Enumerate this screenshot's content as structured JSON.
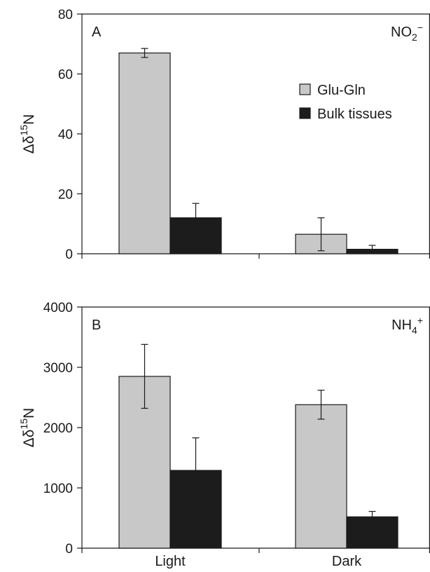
{
  "chart_data": [
    {
      "type": "bar",
      "panel_label": "A",
      "ion_label": "NO2−",
      "ion_base": "NO",
      "ion_sub": "2",
      "ion_sup": "−",
      "ylabel_main": "Δδ",
      "ylabel_sup": "15",
      "ylabel_tail": "N",
      "ylim": [
        0,
        80
      ],
      "yticks": [
        0,
        20,
        40,
        60,
        80
      ],
      "categories": [
        "Light",
        "Dark"
      ],
      "show_category_labels": false,
      "series": [
        {
          "name": "Glu-Gln",
          "color": "#c8c8c8",
          "values": [
            67,
            6.5
          ],
          "errors": [
            1.5,
            5.5
          ]
        },
        {
          "name": "Bulk tissues",
          "color": "#1c1c1c",
          "values": [
            12,
            1.5
          ],
          "errors": [
            4.8,
            1.3
          ]
        }
      ],
      "legend": {
        "placement": "top-right",
        "entries": [
          "Glu-Gln",
          "Bulk tissues"
        ]
      }
    },
    {
      "type": "bar",
      "panel_label": "B",
      "ion_label": "NH4+",
      "ion_base": "NH",
      "ion_sub": "4",
      "ion_sup": "+",
      "ylabel_main": "Δδ",
      "ylabel_sup": "15",
      "ylabel_tail": "N",
      "ylim": [
        0,
        4000
      ],
      "yticks": [
        0,
        1000,
        2000,
        3000,
        4000
      ],
      "categories": [
        "Light",
        "Dark"
      ],
      "show_category_labels": true,
      "series": [
        {
          "name": "Glu-Gln",
          "color": "#c8c8c8",
          "values": [
            2850,
            2380
          ],
          "errors": [
            530,
            240
          ]
        },
        {
          "name": "Bulk tissues",
          "color": "#1c1c1c",
          "values": [
            1290,
            520
          ],
          "errors": [
            540,
            90
          ]
        }
      ]
    }
  ]
}
